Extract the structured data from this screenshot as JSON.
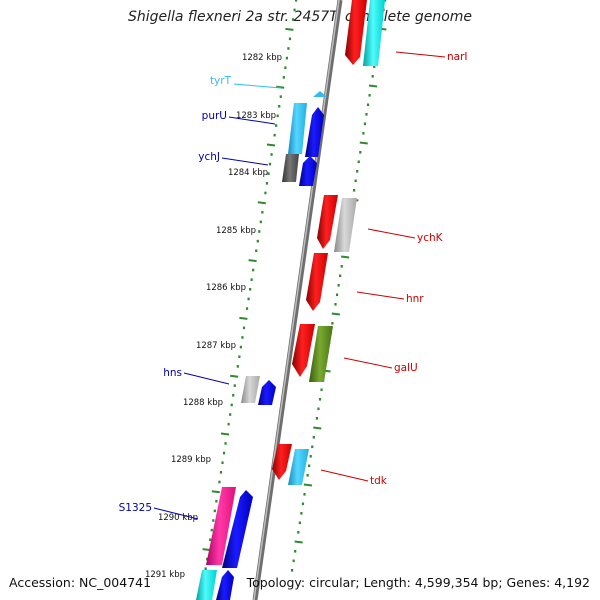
{
  "title": "Shigella flexneri 2a str. 2457T, complete genome",
  "accession": "Accession: NC_004741",
  "footer": "Topology: circular; Length: 4,599,354 bp; Genes: 4,192",
  "colors": {
    "backbone": "#8a8a8a",
    "tick_dots": "#2e8b2e",
    "red_gene": "#ee0000",
    "cyan_gene": "#29c6f0",
    "blue_gene": "#0000dd",
    "grey_gene": "#b5b5b5",
    "darkgrey_gene": "#555555",
    "olive_gene": "#5a8a20",
    "pink_gene": "#ff1493",
    "aqua_gene": "#00e5e5",
    "label_red": "#cc0000",
    "label_blue": "#0000aa",
    "label_cyan": "#33bbee"
  },
  "scale_labels": [
    "1282 kbp",
    "1283 kbp",
    "1284 kbp",
    "1285 kbp",
    "1286 kbp",
    "1287 kbp",
    "1288 kbp",
    "1289 kbp",
    "1290 kbp",
    "1291 kbp"
  ],
  "gene_labels": {
    "narI": "narI",
    "tyrT": "tyrT",
    "purU": "purU",
    "ychJ": "ychJ",
    "ychK": "ychK",
    "hnr": "hnr",
    "galU": "galU",
    "hns": "hns",
    "tdk": "tdk",
    "S1325": "S1325"
  }
}
